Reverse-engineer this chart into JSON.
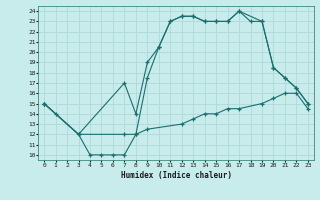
{
  "xlabel": "Humidex (Indice chaleur)",
  "bg_color": "#c8ecec",
  "grid_color": "#b0d8d8",
  "line_color": "#1a6e6e",
  "xlim": [
    -0.5,
    23.5
  ],
  "ylim": [
    9.5,
    24.5
  ],
  "xticks": [
    0,
    1,
    2,
    3,
    4,
    5,
    6,
    7,
    8,
    9,
    10,
    11,
    12,
    13,
    14,
    15,
    16,
    17,
    18,
    19,
    20,
    21,
    22,
    23
  ],
  "yticks": [
    10,
    11,
    12,
    13,
    14,
    15,
    16,
    17,
    18,
    19,
    20,
    21,
    22,
    23,
    24
  ],
  "line1_x": [
    0,
    1,
    3,
    4,
    5,
    6,
    7,
    8,
    9,
    12,
    13,
    14,
    15,
    16,
    17,
    19,
    20,
    21,
    22,
    23
  ],
  "line1_y": [
    15,
    14,
    12,
    10,
    10,
    10,
    10,
    12,
    12.5,
    13,
    13.5,
    14,
    14,
    14.5,
    14.5,
    15,
    15.5,
    16,
    16,
    14.5
  ],
  "line2_x": [
    0,
    3,
    7,
    8,
    9,
    10,
    11,
    12,
    13,
    14,
    15,
    16,
    17,
    18,
    19,
    20,
    21,
    22,
    23
  ],
  "line2_y": [
    15,
    12,
    17,
    14,
    19,
    20.5,
    23,
    23.5,
    23.5,
    23,
    23,
    23,
    24,
    23,
    23,
    18.5,
    17.5,
    16.5,
    15
  ],
  "line3_x": [
    0,
    3,
    7,
    8,
    9,
    10,
    11,
    12,
    13,
    14,
    15,
    16,
    17,
    19,
    20,
    21,
    22,
    23
  ],
  "line3_y": [
    15,
    12,
    12,
    12,
    17.5,
    20.5,
    23,
    23.5,
    23.5,
    23,
    23,
    23,
    24,
    23,
    18.5,
    17.5,
    16.5,
    15
  ]
}
